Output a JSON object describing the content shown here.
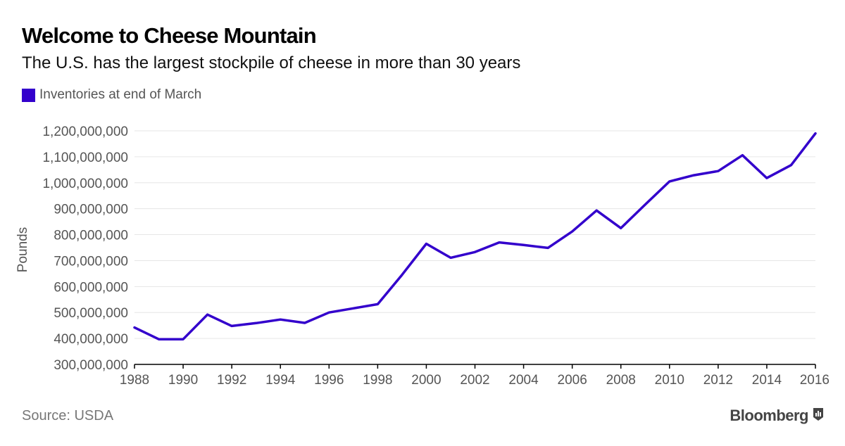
{
  "header": {
    "title": "Welcome to Cheese Mountain",
    "subtitle": "The U.S. has the largest stockpile of cheese in more than 30 years"
  },
  "footer": {
    "source": "Source: USDA",
    "brand": "Bloomberg"
  },
  "colors": {
    "series": "#3300cc",
    "grid": "#e6e6e6",
    "axis": "#000000"
  },
  "chart_data": {
    "type": "line",
    "title": "Welcome to Cheese Mountain",
    "subtitle": "The U.S. has the largest stockpile of cheese in more than 30 years",
    "xlabel": "",
    "ylabel": "Pounds",
    "xlim": [
      1988,
      2016
    ],
    "ylim": [
      300000000,
      1200000000
    ],
    "x_ticks": [
      1988,
      1990,
      1992,
      1994,
      1996,
      1998,
      2000,
      2002,
      2004,
      2006,
      2008,
      2010,
      2012,
      2014,
      2016
    ],
    "x_tick_labels": [
      "1988",
      "1990",
      "1992",
      "1994",
      "1996",
      "1998",
      "2000",
      "2002",
      "2004",
      "2006",
      "2008",
      "2010",
      "2012",
      "2014",
      "2016"
    ],
    "y_ticks": [
      300000000,
      400000000,
      500000000,
      600000000,
      700000000,
      800000000,
      900000000,
      1000000000,
      1100000000,
      1200000000
    ],
    "y_tick_labels": [
      "300,000,000",
      "400,000,000",
      "500,000,000",
      "600,000,000",
      "700,000,000",
      "800,000,000",
      "900,000,000",
      "1,000,000,000",
      "1,100,000,000",
      "1,200,000,000"
    ],
    "grid": true,
    "legend_position": "top-left",
    "x": [
      1988,
      1989,
      1990,
      1991,
      1992,
      1993,
      1994,
      1995,
      1996,
      1997,
      1998,
      1999,
      2000,
      2001,
      2002,
      2003,
      2004,
      2005,
      2006,
      2007,
      2008,
      2009,
      2010,
      2011,
      2012,
      2013,
      2014,
      2015,
      2016
    ],
    "series": [
      {
        "name": "Inventories at end of March",
        "color": "#3300cc",
        "values": [
          442000000,
          397000000,
          397000000,
          492000000,
          448000000,
          459000000,
          473000000,
          460000000,
          500000000,
          516000000,
          532000000,
          645000000,
          765000000,
          711000000,
          733000000,
          770000000,
          760000000,
          749000000,
          812000000,
          893000000,
          825000000,
          916000000,
          1005000000,
          1029000000,
          1045000000,
          1106000000,
          1018000000,
          1068000000,
          1190000000
        ]
      }
    ]
  }
}
